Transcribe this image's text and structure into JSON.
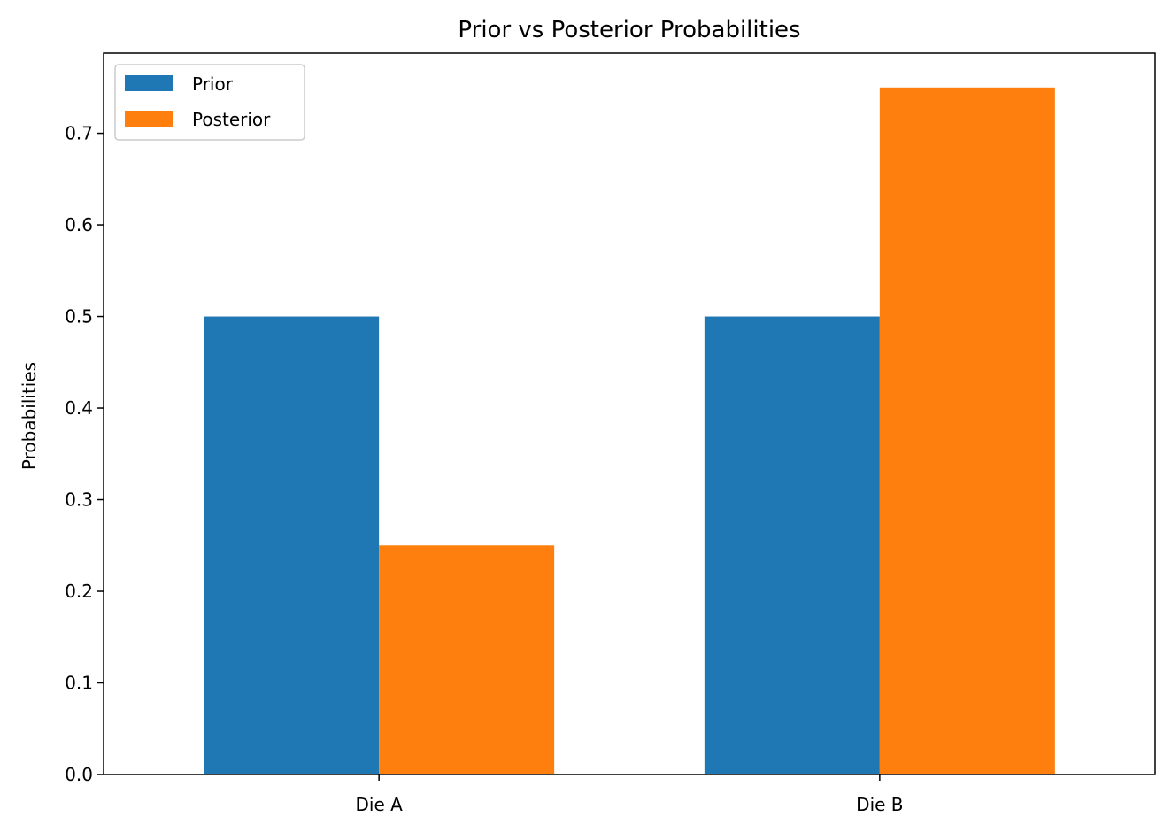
{
  "chart_data": {
    "type": "bar",
    "title": "Prior vs Posterior Probabilities",
    "xlabel": "",
    "ylabel": "Probabilities",
    "categories": [
      "Die A",
      "Die B"
    ],
    "series": [
      {
        "name": "Prior",
        "values": [
          0.5,
          0.5
        ],
        "color": "#1f77b4"
      },
      {
        "name": "Posterior",
        "values": [
          0.25,
          0.75
        ],
        "color": "#ff7f0e"
      }
    ],
    "ylim": [
      0,
      0.7875
    ],
    "yticks": [
      0.0,
      0.1,
      0.2,
      0.3,
      0.4,
      0.5,
      0.6,
      0.7
    ],
    "ytick_labels": [
      "0.0",
      "0.1",
      "0.2",
      "0.3",
      "0.4",
      "0.5",
      "0.6",
      "0.7"
    ],
    "grid": false,
    "legend_position": "upper left"
  }
}
